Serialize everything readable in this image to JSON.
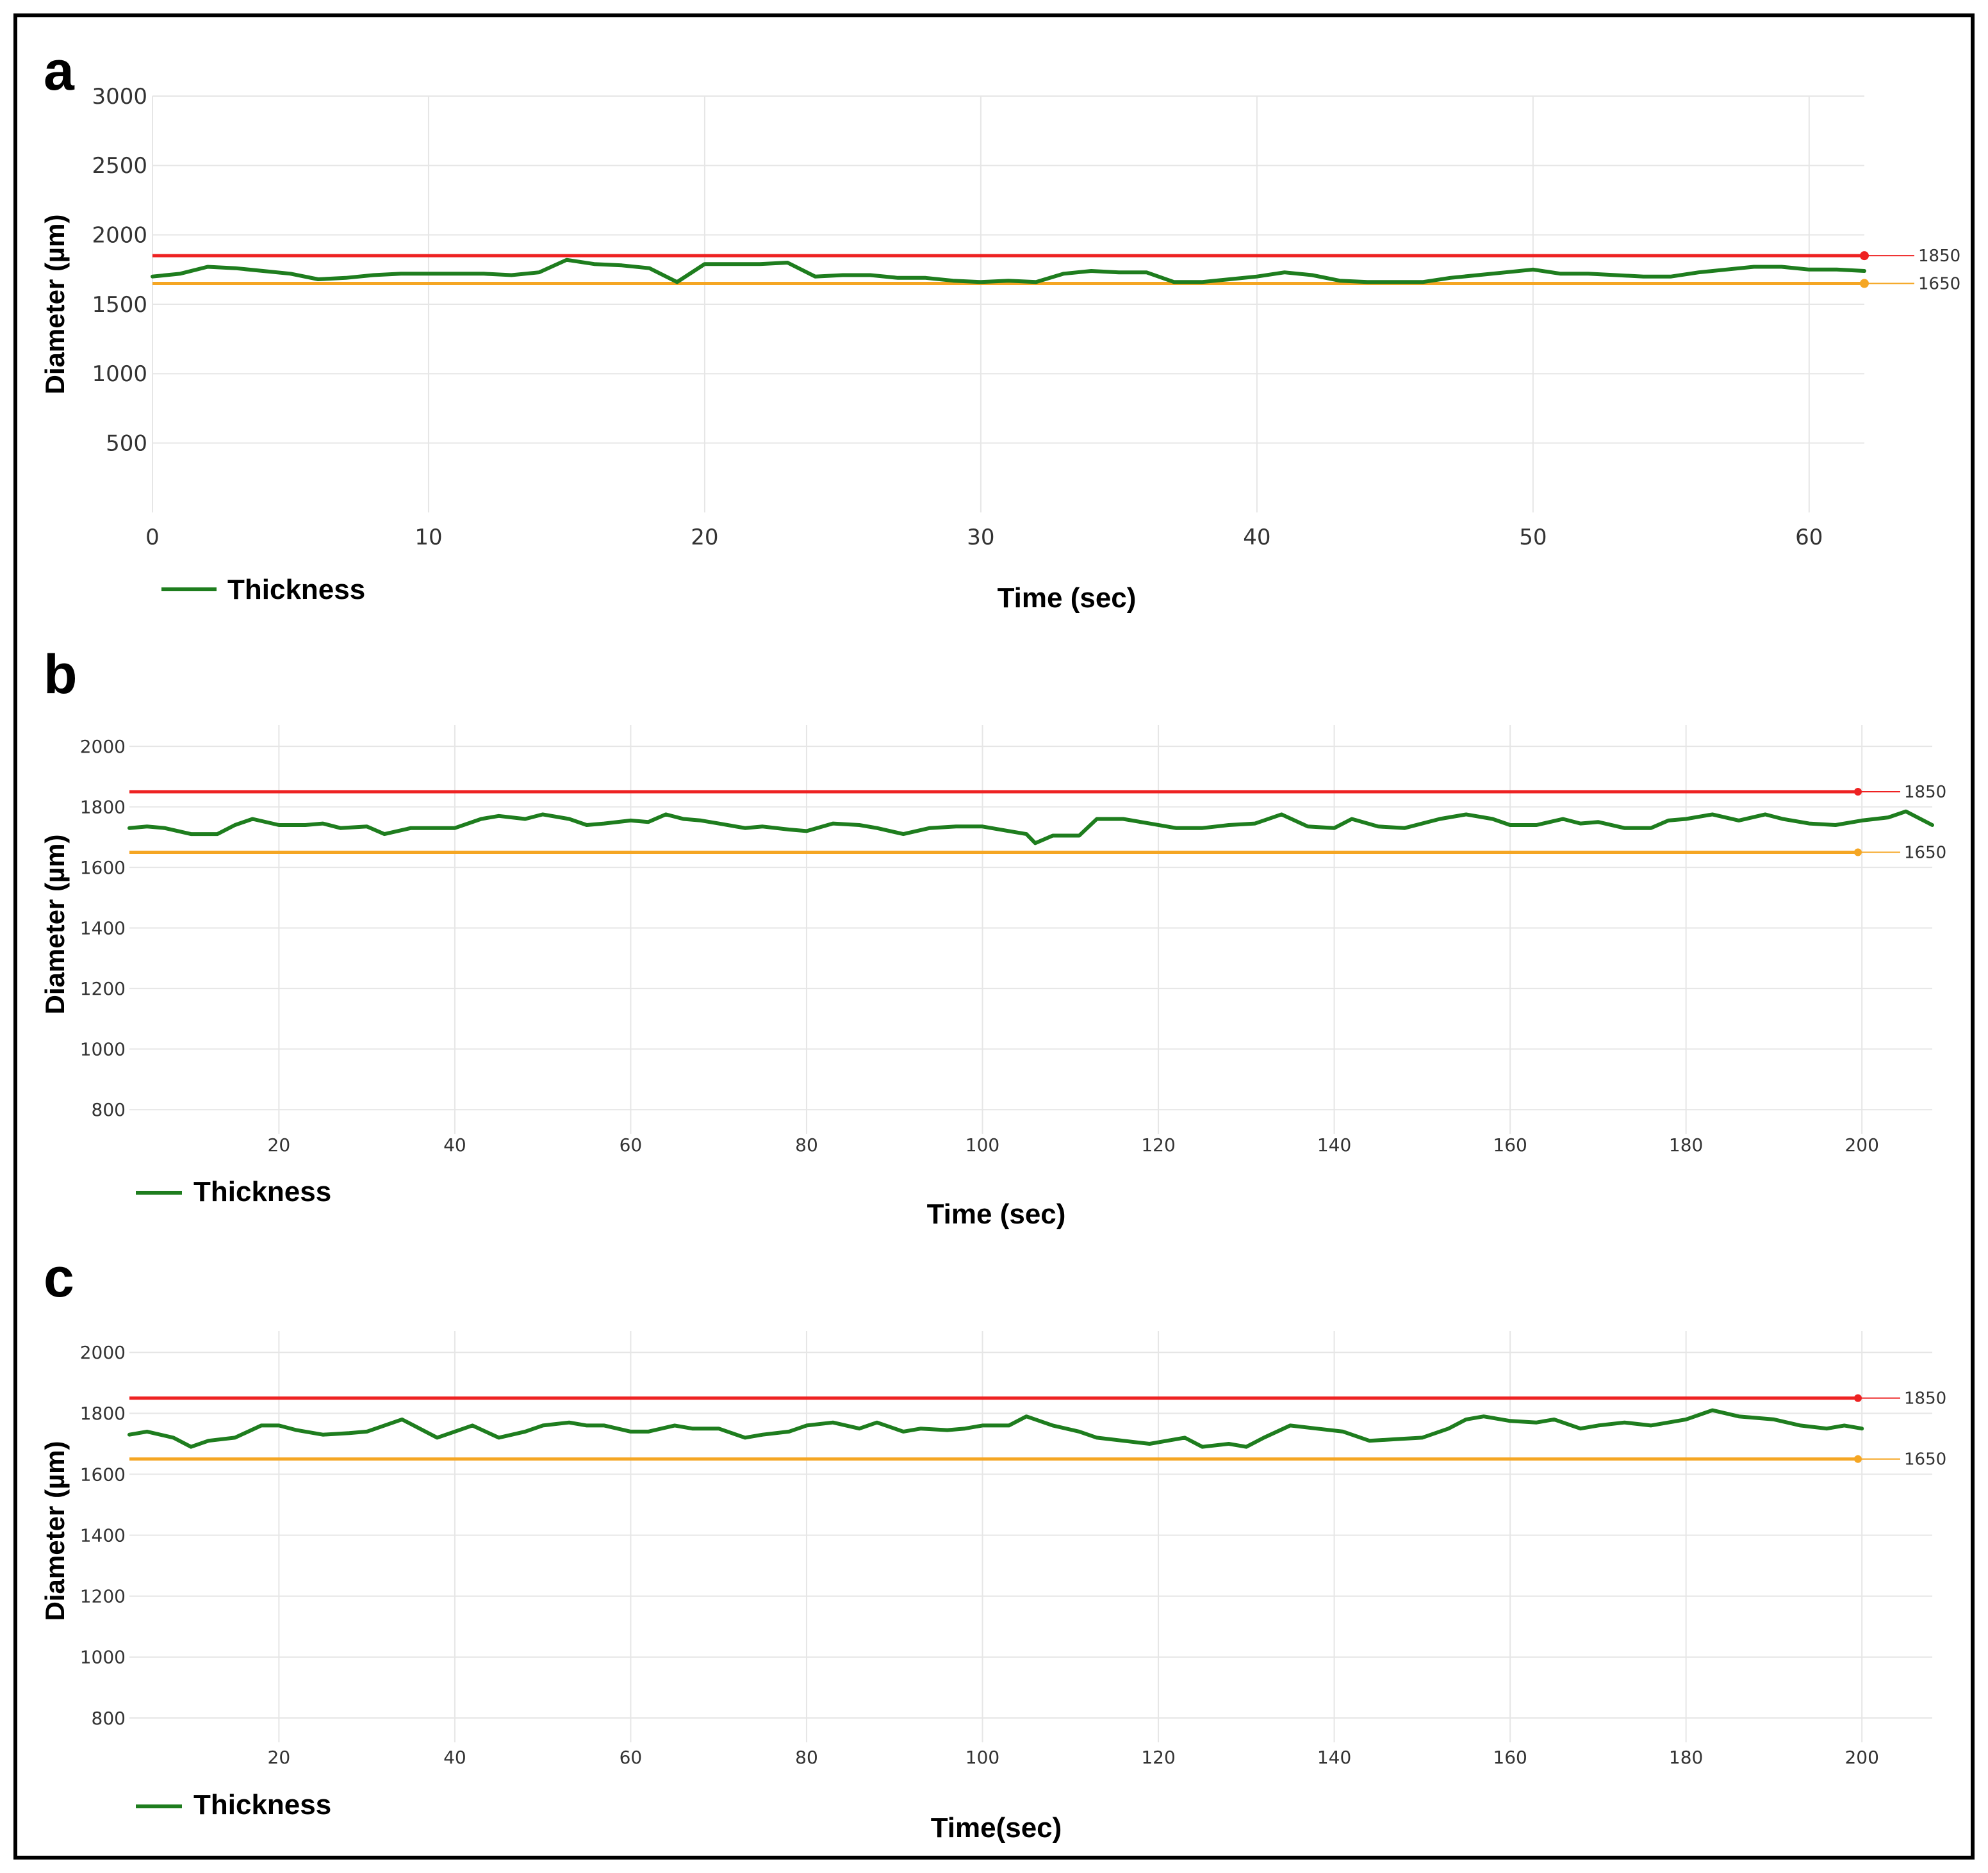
{
  "colors": {
    "thickness": "#1e7d1e",
    "upper_limit": "#ee2222",
    "lower_limit": "#f5a623",
    "grid": "#e6e6e6",
    "frame": "#000000"
  },
  "chart_data": [
    {
      "panel": "a",
      "type": "line",
      "xlabel": "Time (sec)",
      "ylabel": "Diameter (µm)",
      "xlim": [
        0,
        62
      ],
      "ylim": [
        0,
        3000
      ],
      "xticks": [
        0,
        10,
        20,
        30,
        40,
        50,
        60
      ],
      "yticks": [
        500,
        1000,
        1500,
        2000,
        2500,
        3000
      ],
      "grid": true,
      "legend": "bottom-left",
      "reference_lines": [
        {
          "label": "1850",
          "value": 1850,
          "color": "#ee2222"
        },
        {
          "label": "1650",
          "value": 1650,
          "color": "#f5a623"
        }
      ],
      "series": [
        {
          "name": "Thickness",
          "color": "#1e7d1e",
          "x": [
            0,
            1,
            2,
            3,
            4,
            5,
            6,
            7,
            8,
            9,
            10,
            11,
            12,
            13,
            14,
            15,
            16,
            17,
            18,
            19,
            20,
            21,
            22,
            23,
            24,
            25,
            26,
            27,
            28,
            29,
            30,
            31,
            32,
            33,
            34,
            35,
            36,
            37,
            38,
            39,
            40,
            41,
            42,
            43,
            44,
            45,
            46,
            47,
            48,
            49,
            50,
            51,
            52,
            53,
            54,
            55,
            56,
            57,
            58,
            59,
            60,
            61,
            62
          ],
          "y": [
            1700,
            1720,
            1770,
            1760,
            1740,
            1720,
            1680,
            1690,
            1710,
            1720,
            1720,
            1720,
            1720,
            1710,
            1730,
            1820,
            1790,
            1780,
            1760,
            1660,
            1790,
            1790,
            1790,
            1800,
            1700,
            1710,
            1710,
            1690,
            1690,
            1670,
            1660,
            1670,
            1660,
            1720,
            1740,
            1730,
            1730,
            1660,
            1660,
            1680,
            1700,
            1730,
            1710,
            1670,
            1660,
            1660,
            1660,
            1690,
            1710,
            1730,
            1750,
            1720,
            1720,
            1710,
            1700,
            1700,
            1730,
            1750,
            1770,
            1770,
            1750,
            1750,
            1740
          ]
        }
      ]
    },
    {
      "panel": "b",
      "type": "line",
      "xlabel": "Time (sec)",
      "ylabel": "Diameter (µm)",
      "xlim": [
        3,
        208
      ],
      "ylim": [
        720,
        2070
      ],
      "xticks": [
        20,
        40,
        60,
        80,
        100,
        120,
        140,
        160,
        180,
        200
      ],
      "yticks": [
        800,
        1000,
        1200,
        1400,
        1600,
        1800,
        2000
      ],
      "grid": true,
      "legend": "bottom-left",
      "reference_lines": [
        {
          "label": "1850",
          "value": 1850,
          "color": "#ee2222"
        },
        {
          "label": "1650",
          "value": 1650,
          "color": "#f5a623"
        }
      ],
      "series": [
        {
          "name": "Thickness",
          "color": "#1e7d1e",
          "x": [
            3,
            5,
            7,
            10,
            13,
            15,
            17,
            20,
            23,
            25,
            27,
            30,
            32,
            35,
            37,
            40,
            43,
            45,
            48,
            50,
            53,
            55,
            57,
            60,
            62,
            64,
            66,
            68,
            70,
            73,
            75,
            78,
            80,
            83,
            86,
            88,
            91,
            94,
            97,
            100,
            103,
            105,
            106,
            108,
            111,
            113,
            116,
            119,
            122,
            125,
            128,
            131,
            134,
            137,
            140,
            142,
            145,
            148,
            152,
            155,
            158,
            160,
            163,
            166,
            168,
            170,
            173,
            176,
            178,
            180,
            183,
            186,
            189,
            191,
            194,
            197,
            200,
            203,
            205,
            208
          ],
          "y": [
            1730,
            1735,
            1730,
            1710,
            1710,
            1740,
            1760,
            1740,
            1740,
            1745,
            1730,
            1735,
            1710,
            1730,
            1730,
            1730,
            1760,
            1770,
            1760,
            1775,
            1760,
            1740,
            1745,
            1755,
            1750,
            1775,
            1760,
            1755,
            1745,
            1730,
            1735,
            1725,
            1720,
            1745,
            1740,
            1730,
            1710,
            1730,
            1735,
            1735,
            1720,
            1710,
            1680,
            1705,
            1705,
            1760,
            1760,
            1745,
            1730,
            1730,
            1740,
            1745,
            1775,
            1735,
            1730,
            1760,
            1735,
            1730,
            1760,
            1775,
            1760,
            1740,
            1740,
            1760,
            1745,
            1750,
            1730,
            1730,
            1755,
            1760,
            1775,
            1755,
            1775,
            1760,
            1745,
            1740,
            1755,
            1765,
            1785,
            1740
          ]
        }
      ]
    },
    {
      "panel": "c",
      "type": "line",
      "xlabel": "Time(sec)",
      "ylabel": "Diameter (µm)",
      "xlim": [
        3,
        208
      ],
      "ylim": [
        720,
        2070
      ],
      "xticks": [
        20,
        40,
        60,
        80,
        100,
        120,
        140,
        160,
        180,
        200
      ],
      "yticks": [
        800,
        1000,
        1200,
        1400,
        1600,
        1800,
        2000
      ],
      "grid": true,
      "legend": "bottom-left",
      "reference_lines": [
        {
          "label": "1850",
          "value": 1850,
          "color": "#ee2222"
        },
        {
          "label": "1650",
          "value": 1650,
          "color": "#f5a623"
        }
      ],
      "series": [
        {
          "name": "Thickness",
          "color": "#1e7d1e",
          "x": [
            3,
            5,
            8,
            10,
            12,
            15,
            18,
            20,
            22,
            25,
            28,
            30,
            32,
            34,
            36,
            38,
            40,
            42,
            45,
            48,
            50,
            53,
            55,
            57,
            60,
            62,
            65,
            67,
            70,
            73,
            75,
            78,
            80,
            83,
            86,
            88,
            91,
            93,
            96,
            98,
            100,
            103,
            105,
            108,
            111,
            113,
            116,
            119,
            121,
            123,
            125,
            128,
            130,
            132,
            135,
            138,
            141,
            144,
            147,
            150,
            153,
            155,
            157,
            160,
            163,
            165,
            168,
            170,
            173,
            176,
            180,
            183,
            186,
            190,
            193,
            196,
            198,
            200
          ],
          "y": [
            1730,
            1740,
            1720,
            1690,
            1710,
            1720,
            1760,
            1760,
            1745,
            1730,
            1735,
            1740,
            1760,
            1780,
            1750,
            1720,
            1740,
            1760,
            1720,
            1740,
            1760,
            1770,
            1760,
            1760,
            1740,
            1740,
            1760,
            1750,
            1750,
            1720,
            1730,
            1740,
            1760,
            1770,
            1750,
            1770,
            1740,
            1750,
            1745,
            1750,
            1760,
            1760,
            1790,
            1760,
            1740,
            1720,
            1710,
            1700,
            1710,
            1720,
            1690,
            1700,
            1690,
            1720,
            1760,
            1750,
            1740,
            1710,
            1715,
            1720,
            1750,
            1780,
            1790,
            1775,
            1770,
            1780,
            1750,
            1760,
            1770,
            1760,
            1780,
            1810,
            1790,
            1780,
            1760,
            1750,
            1760,
            1750
          ]
        }
      ]
    }
  ]
}
